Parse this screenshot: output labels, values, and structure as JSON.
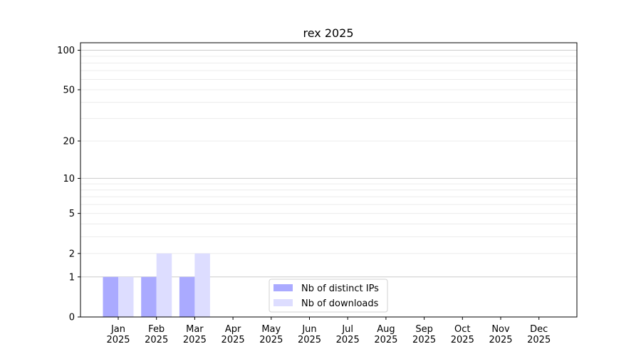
{
  "chart_data": {
    "type": "bar",
    "title": "rex 2025",
    "xlabel": "",
    "ylabel": "",
    "y_scale": "log(1+y)",
    "ylim": [
      0,
      114
    ],
    "y_ticks": [
      0,
      1,
      2,
      5,
      10,
      20,
      50,
      100
    ],
    "y_tick_labels": [
      "0",
      "1",
      "2",
      "5",
      "10",
      "20",
      "50",
      "100"
    ],
    "grid": true,
    "categories": [
      "Jan\n2025",
      "Feb\n2025",
      "Mar\n2025",
      "Apr\n2025",
      "May\n2025",
      "Jun\n2025",
      "Jul\n2025",
      "Aug\n2025",
      "Sep\n2025",
      "Oct\n2025",
      "Nov\n2025",
      "Dec\n2025"
    ],
    "series": [
      {
        "name": "Nb of distinct IPs",
        "color": "#aaaaff",
        "values": [
          1,
          1,
          1,
          0,
          0,
          0,
          0,
          0,
          0,
          0,
          0,
          0
        ]
      },
      {
        "name": "Nb of downloads",
        "color": "#ddddff",
        "values": [
          1,
          2,
          2,
          0,
          0,
          0,
          0,
          0,
          0,
          0,
          0,
          0
        ]
      }
    ],
    "legend_position": "bottom-center"
  }
}
